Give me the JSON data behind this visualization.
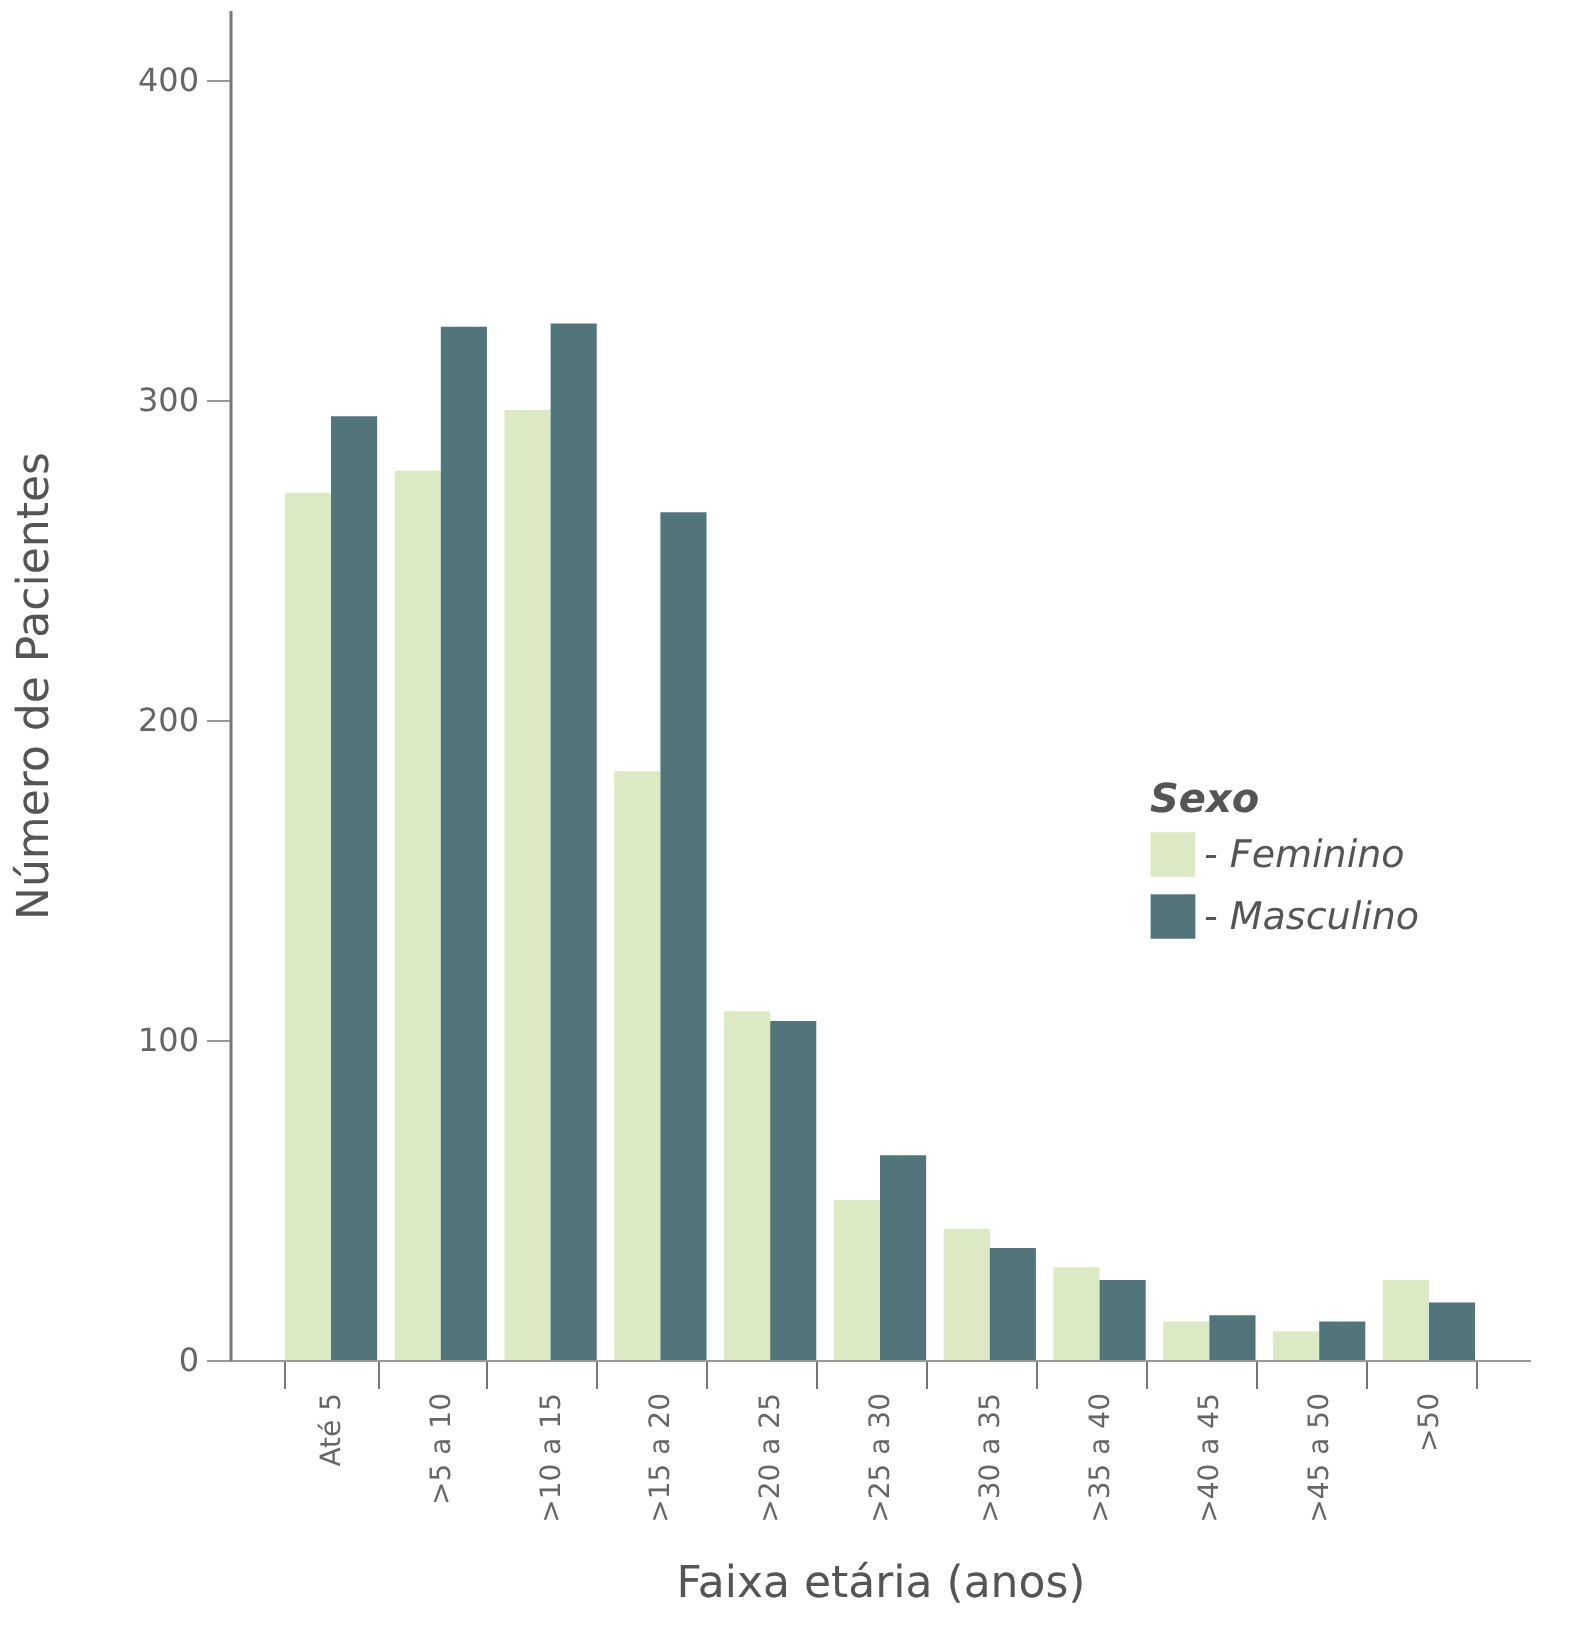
{
  "chart_data": {
    "type": "bar",
    "xlabel": "Faixa etária (anos)",
    "ylabel": "Número de Pacientes",
    "legend_title": "Sexo",
    "categories": [
      "Até 5",
      ">5 a 10",
      ">10 a 15",
      ">15 a 20",
      ">20 a 25",
      ">25 a 30",
      ">30 a 35",
      ">35 a 40",
      ">40 a 45",
      ">45 a 50",
      ">50"
    ],
    "series": [
      {
        "name": "- Feminino",
        "color": "#dbeac3",
        "values": [
          271,
          278,
          297,
          184,
          109,
          50,
          41,
          29,
          12,
          9,
          25
        ]
      },
      {
        "name": "- Masculino",
        "color": "#52757b",
        "values": [
          295,
          323,
          324,
          265,
          106,
          64,
          35,
          25,
          14,
          12,
          18
        ]
      }
    ],
    "ylim": [
      0,
      422
    ],
    "yticks": [
      0,
      100,
      200,
      300,
      400
    ],
    "grid": false,
    "legend": "right"
  }
}
